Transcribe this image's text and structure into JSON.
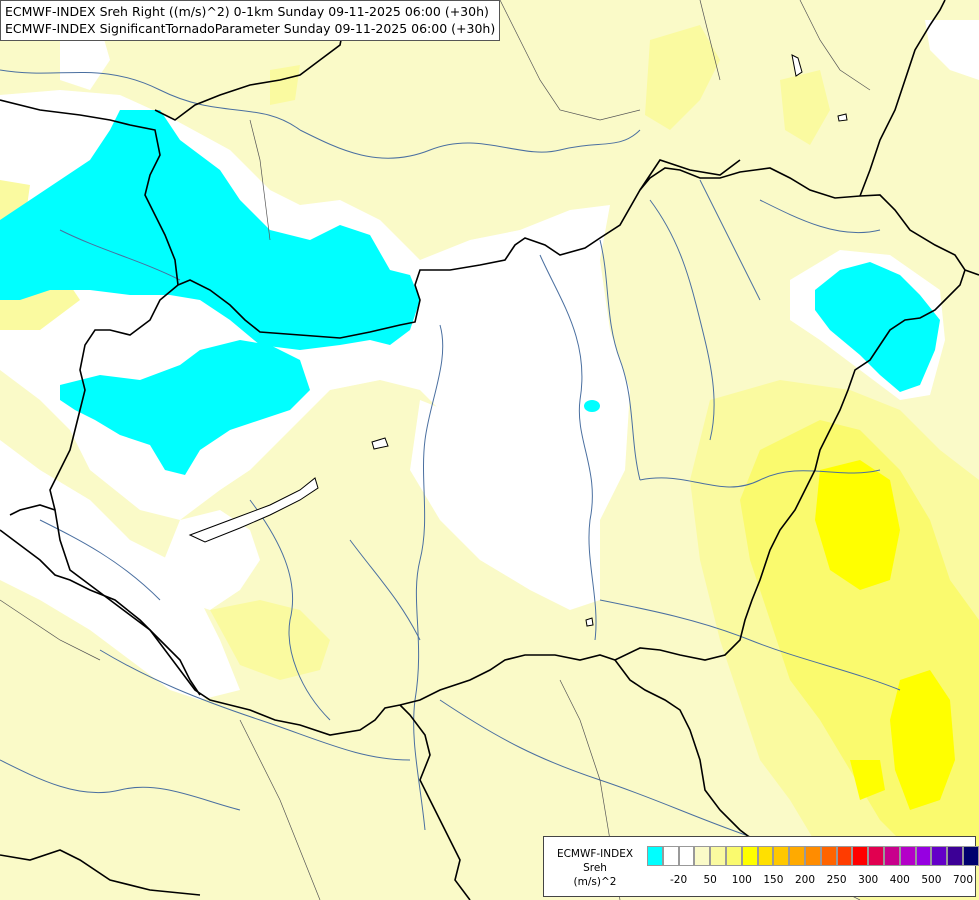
{
  "title": {
    "line1": "ECMWF-INDEX Sreh Right ((m/s)^2) 0-1km Sunday 09-11-2025 06:00 (+30h)",
    "line2": "ECMWF-INDEX SignificantTornadoParameter Sunday 09-11-2025 06:00 (+30h)"
  },
  "legend": {
    "label_line1": "ECMWF-INDEX",
    "label_line2": "Sreh",
    "label_line3": "(m/s)^2",
    "colors": [
      "#00ffff",
      "#ffffff",
      "#ffffff",
      "#fafac8",
      "#fafaa0",
      "#fafa6e",
      "#ffff00",
      "#ffe000",
      "#ffc800",
      "#ffaa00",
      "#ff8c00",
      "#ff6400",
      "#ff3c00",
      "#ff0000",
      "#e10050",
      "#c8008c",
      "#b400c8",
      "#9600e1",
      "#6400c8",
      "#3c0096",
      "#00006e"
    ],
    "ticks": [
      {
        "value": "-20",
        "index": 1
      },
      {
        "value": "50",
        "index": 3
      },
      {
        "value": "100",
        "index": 5
      },
      {
        "value": "150",
        "index": 7
      },
      {
        "value": "200",
        "index": 9
      },
      {
        "value": "250",
        "index": 11
      },
      {
        "value": "300",
        "index": 13
      },
      {
        "value": "400",
        "index": 15
      },
      {
        "value": "500",
        "index": 17
      },
      {
        "value": "700",
        "index": 19
      }
    ]
  },
  "map": {
    "background_color": "#fafac8",
    "color_low": "#00ffff",
    "color_zero": "#ffffff",
    "color_light": "#fafaa0",
    "color_mid": "#fafa6e",
    "color_high": "#ffff00",
    "border_color": "#000000",
    "river_color": "#4a6fa0"
  }
}
